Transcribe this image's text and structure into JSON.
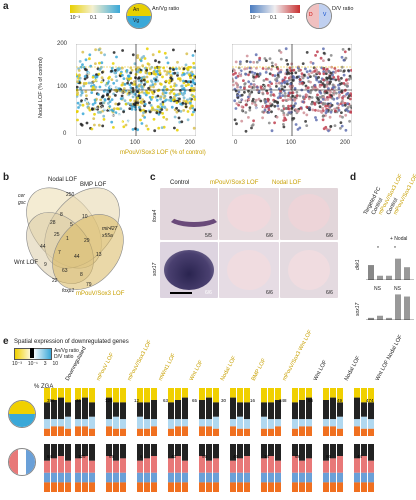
{
  "panels": {
    "a": "a",
    "b": "b",
    "c": "c",
    "d": "d",
    "e": "e"
  },
  "panel_a": {
    "anvg_legend": {
      "ticks": [
        "10⁻³",
        "0.1",
        "10"
      ],
      "label": "An/Vg ratio",
      "top": "An",
      "bottom": "Vg",
      "colors": [
        "#e8d000",
        "#3aa8d8"
      ]
    },
    "dv_legend": {
      "ticks": [
        "10⁻³",
        "0.1",
        "10¹"
      ],
      "label": "D/V ratio",
      "d": "D",
      "v": "V",
      "colors": [
        "#4a7cc0",
        "#c83030"
      ]
    },
    "ylabel": "Nodal LOF (% of control)",
    "xlabel": "mPouV/Sox3 LOF (% of control)",
    "yticks": [
      "200",
      "100",
      "0"
    ],
    "xticks": [
      "0",
      "100",
      "200"
    ],
    "left_labels": [
      "15",
      "16",
      "Y1",
      "Chd",
      "X16",
      "sia1",
      "foxa4a",
      "foxd3",
      "ndcx",
      "VD13",
      "X18",
      "ventx",
      "Y10",
      "snai1",
      "foxa1",
      "X14"
    ],
    "left_bottom": [
      "foxi",
      "gc1",
      "bmp4",
      "ccnd1",
      "pou5f3.1",
      "sox17b",
      "sox3",
      "t",
      "mix1",
      "foxj",
      "t"
    ],
    "right_labels": [
      "Y1",
      "foxd3",
      "X1",
      "t",
      "sox17",
      "nodal2",
      "foxa2"
    ],
    "right_bottom": [
      "Y1",
      "foxg",
      "psm",
      "bmp4",
      "chrd",
      "sox17",
      "foxj1",
      "pax3",
      "t"
    ],
    "chart_data": [
      {
        "type": "scatter",
        "title": "",
        "xlabel": "mPouV/Sox3 LOF (% of control)",
        "ylabel": "Nodal LOF (% of control)",
        "xlim": [
          0,
          200
        ],
        "ylim": [
          0,
          200
        ],
        "color_by": "An/Vg ratio"
      },
      {
        "type": "scatter",
        "title": "",
        "xlabel": "mPouV/Sox3 LOF (% of control)",
        "ylabel": "",
        "xlim": [
          0,
          200
        ],
        "ylim": [
          0,
          200
        ],
        "color_by": "D/V ratio"
      }
    ]
  },
  "panel_b": {
    "sets": [
      "Nodal LOF",
      "BMP LOF",
      "Wnt LOF",
      "mPouV/Sox3 LOF"
    ],
    "counts": [
      "250",
      "8",
      "28",
      "10",
      "5",
      "25",
      "1",
      "29",
      "44",
      "7",
      "44",
      "9",
      "13",
      "63",
      "8",
      "22",
      "79",
      "32",
      "7",
      "16"
    ],
    "gene_labels": [
      "cer",
      "gsc",
      "admp",
      "fgf8",
      "foxd3",
      "sox2",
      "mir427",
      "lox",
      "foxa1",
      "mix1",
      "t"
    ],
    "side_notes": [
      "mir427",
      "x55a",
      "a101",
      "foxp1",
      "x11",
      "sox17"
    ]
  },
  "panel_c": {
    "columns": [
      "Control",
      "mPouV/Sox3 LOF",
      "Nodal LOF"
    ],
    "rows": [
      "foxa4",
      "sox17"
    ],
    "fractions": [
      [
        "5/5",
        "6/6",
        "6/6"
      ],
      [
        "6/6",
        "6/6",
        "6/6"
      ]
    ]
  },
  "panel_d": {
    "header": [
      "Targeted FC",
      "Control",
      "mPouV/Sox3 LOF",
      "Control",
      "mPouV/Sox3 LOF"
    ],
    "nodal": "+ Nodal",
    "genes": [
      "dkk1",
      "sox17"
    ],
    "sig": [
      "*",
      "*",
      "NS",
      "NS"
    ],
    "chart_data": [
      {
        "type": "bar",
        "title": "",
        "ylabel": "dkk1",
        "categories": [
          "1",
          "2",
          "3",
          "4",
          "5"
        ],
        "values": [
          4.2,
          3.7,
          3.7,
          4.5,
          4.1
        ],
        "ylim": [
          3.5,
          5
        ]
      },
      {
        "type": "bar",
        "title": "",
        "ylabel": "sox17",
        "categories": [
          "1",
          "2",
          "3",
          "4",
          "5"
        ],
        "values": [
          3.6,
          3.7,
          3.6,
          4.7,
          4.6
        ],
        "ylim": [
          3.5,
          5
        ]
      }
    ]
  },
  "panel_e": {
    "title": "Spatial expression of downregulated genes",
    "legend": {
      "an_vg": "An/Vg ratio",
      "d_v": "D/V ratio",
      "ticks": [
        "10⁻³",
        "10⁻¹",
        "3",
        "10"
      ]
    },
    "zga_label": "% ZGA",
    "groups": [
      "Downregulated",
      "mPouV LOF",
      "mPouV/Sox3 LOF",
      "mWnt1 LOF",
      "Wnt LOF",
      "Nodal LOF",
      "BMP LOF",
      "mPouV/Sox3 Wnt LOF",
      "Wnt LOF",
      "Nodal LOF",
      "Wnt LOF Nodal LOF"
    ],
    "top_colors": [
      "#f0d000",
      "#222222",
      "#b0d8f0",
      "#f07020"
    ],
    "bottom_colors": [
      "#222222",
      "#e87878",
      "#6aa0d8",
      "#f07020"
    ],
    "top_values": [
      "386",
      "36",
      "125",
      "12",
      "63",
      "65",
      "30",
      "16",
      "348",
      "56",
      "49",
      "474"
    ],
    "bottom_values": [
      "64",
      "129",
      "69",
      "6",
      "43",
      "95",
      "46",
      "14",
      "68",
      "96",
      "44"
    ]
  }
}
